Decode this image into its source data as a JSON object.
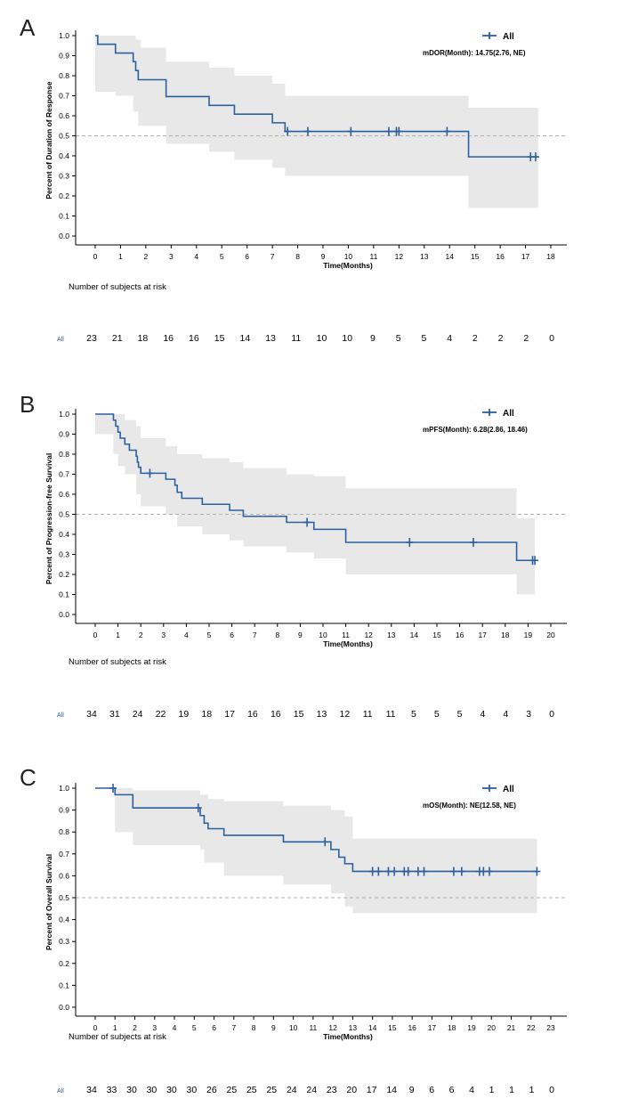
{
  "colors": {
    "line": "#2c5f9e",
    "band": "#e8e8e8",
    "axis": "#000000",
    "ref": "#b0b0b0",
    "risk_label": "#2c5f9e"
  },
  "panels": [
    {
      "letter": "A",
      "ylabel": "Percent of Duration of Response",
      "xlabel": "Time(Months)",
      "legend": "All",
      "median_text": "mDOR(Month): 14.75(2.76, NE)",
      "risk_title": "Number of subjects at risk",
      "risk_label": "All",
      "risk_counts": [
        "23",
        "21",
        "18",
        "16",
        "16",
        "15",
        "14",
        "13",
        "11",
        "10",
        "10",
        "9",
        "5",
        "5",
        "4",
        "2",
        "2",
        "2",
        "0"
      ],
      "chart_data": {
        "type": "line",
        "xlim": [
          0,
          18
        ],
        "ylim": [
          0,
          1
        ],
        "xticks": [
          "0",
          "1",
          "2",
          "3",
          "4",
          "5",
          "6",
          "7",
          "8",
          "9",
          "10",
          "11",
          "12",
          "13",
          "14",
          "15",
          "16",
          "17",
          "18"
        ],
        "yticks": [
          "0.0",
          "0.1",
          "0.2",
          "0.3",
          "0.4",
          "0.5",
          "0.6",
          "0.7",
          "0.8",
          "0.9",
          "1.0"
        ],
        "reference_y": 0.5,
        "grid": false,
        "legend_position": "top-right",
        "curve": [
          [
            0,
            1.0
          ],
          [
            0.1,
            0.957
          ],
          [
            0.8,
            0.913
          ],
          [
            1.5,
            0.87
          ],
          [
            1.6,
            0.826
          ],
          [
            1.7,
            0.78
          ],
          [
            2.8,
            0.696
          ],
          [
            4.5,
            0.652
          ],
          [
            5.5,
            0.608
          ],
          [
            7.0,
            0.565
          ],
          [
            7.5,
            0.522
          ],
          [
            14.75,
            0.395
          ],
          [
            17.5,
            0.395
          ]
        ],
        "ci_upper": [
          [
            0,
            1.0
          ],
          [
            1.6,
            0.98
          ],
          [
            1.8,
            0.94
          ],
          [
            2.8,
            0.87
          ],
          [
            4.5,
            0.84
          ],
          [
            5.5,
            0.8
          ],
          [
            7.0,
            0.76
          ],
          [
            7.5,
            0.7
          ],
          [
            14.75,
            0.64
          ],
          [
            17.5,
            0.64
          ]
        ],
        "ci_lower": [
          [
            0,
            0.72
          ],
          [
            0.8,
            0.7
          ],
          [
            1.5,
            0.62
          ],
          [
            1.7,
            0.55
          ],
          [
            2.8,
            0.46
          ],
          [
            4.5,
            0.42
          ],
          [
            5.5,
            0.38
          ],
          [
            7.0,
            0.34
          ],
          [
            7.5,
            0.3
          ],
          [
            14.75,
            0.14
          ],
          [
            17.5,
            0.14
          ]
        ],
        "censor_x": [
          7.6,
          8.4,
          10.1,
          11.6,
          11.9,
          12.0,
          13.9,
          17.2,
          17.4
        ]
      }
    },
    {
      "letter": "B",
      "ylabel": "Percent of Progression-free Survival",
      "xlabel": "Time(Months)",
      "legend": "All",
      "median_text": "mPFS(Month): 6.28(2.86, 18.46)",
      "risk_title": "Number of subjects at risk",
      "risk_label": "All",
      "risk_counts": [
        "34",
        "31",
        "24",
        "22",
        "19",
        "18",
        "17",
        "16",
        "16",
        "15",
        "13",
        "12",
        "11",
        "11",
        "5",
        "5",
        "5",
        "4",
        "4",
        "3",
        "0"
      ],
      "chart_data": {
        "type": "line",
        "xlim": [
          0,
          20
        ],
        "ylim": [
          0,
          1
        ],
        "xticks": [
          "0",
          "1",
          "2",
          "3",
          "4",
          "5",
          "6",
          "7",
          "8",
          "9",
          "10",
          "11",
          "12",
          "13",
          "14",
          "15",
          "16",
          "17",
          "18",
          "19",
          "20"
        ],
        "yticks": [
          "0.0",
          "0.1",
          "0.2",
          "0.3",
          "0.4",
          "0.5",
          "0.6",
          "0.7",
          "0.8",
          "0.9",
          "1.0"
        ],
        "reference_y": 0.5,
        "grid": false,
        "legend_position": "top-right",
        "curve": [
          [
            0,
            1.0
          ],
          [
            0.8,
            0.97
          ],
          [
            0.9,
            0.94
          ],
          [
            1.0,
            0.91
          ],
          [
            1.1,
            0.88
          ],
          [
            1.3,
            0.85
          ],
          [
            1.5,
            0.82
          ],
          [
            1.8,
            0.79
          ],
          [
            1.85,
            0.76
          ],
          [
            1.9,
            0.735
          ],
          [
            2.0,
            0.705
          ],
          [
            3.1,
            0.675
          ],
          [
            3.5,
            0.645
          ],
          [
            3.6,
            0.61
          ],
          [
            3.8,
            0.58
          ],
          [
            4.7,
            0.55
          ],
          [
            5.9,
            0.52
          ],
          [
            6.5,
            0.49
          ],
          [
            8.4,
            0.46
          ],
          [
            9.6,
            0.425
          ],
          [
            11.0,
            0.36
          ],
          [
            18.5,
            0.27
          ],
          [
            19.3,
            0.27
          ]
        ],
        "ci_upper": [
          [
            0,
            1.0
          ],
          [
            0.9,
            1.0
          ],
          [
            1.3,
            0.97
          ],
          [
            1.8,
            0.94
          ],
          [
            2.0,
            0.88
          ],
          [
            3.1,
            0.84
          ],
          [
            3.6,
            0.8
          ],
          [
            4.7,
            0.78
          ],
          [
            5.9,
            0.76
          ],
          [
            6.5,
            0.73
          ],
          [
            8.4,
            0.7
          ],
          [
            9.6,
            0.69
          ],
          [
            11.0,
            0.63
          ],
          [
            18.5,
            0.61
          ],
          [
            18.5,
            0.48
          ],
          [
            19.3,
            0.48
          ]
        ],
        "ci_lower": [
          [
            0,
            0.9
          ],
          [
            0.8,
            0.8
          ],
          [
            1.0,
            0.74
          ],
          [
            1.3,
            0.7
          ],
          [
            1.8,
            0.6
          ],
          [
            2.0,
            0.54
          ],
          [
            3.1,
            0.5
          ],
          [
            3.6,
            0.44
          ],
          [
            4.7,
            0.4
          ],
          [
            5.9,
            0.37
          ],
          [
            6.5,
            0.34
          ],
          [
            8.4,
            0.31
          ],
          [
            9.6,
            0.28
          ],
          [
            11.0,
            0.2
          ],
          [
            18.5,
            0.1
          ],
          [
            19.3,
            0.1
          ]
        ],
        "censor_x": [
          2.4,
          9.3,
          13.8,
          16.6,
          19.2,
          19.3
        ]
      }
    },
    {
      "letter": "C",
      "ylabel": "Percent of Overall Survival",
      "xlabel": "Time(Months)",
      "legend": "All",
      "median_text": "mOS(Month): NE(12.58, NE)",
      "risk_title": "Number of subjects at risk",
      "risk_label": "All",
      "risk_counts": [
        "34",
        "33",
        "30",
        "30",
        "30",
        "30",
        "26",
        "25",
        "25",
        "25",
        "24",
        "24",
        "23",
        "20",
        "17",
        "14",
        "9",
        "6",
        "6",
        "4",
        "1",
        "1",
        "1",
        "0"
      ],
      "chart_data": {
        "type": "line",
        "xlim": [
          0,
          23
        ],
        "ylim": [
          0,
          1
        ],
        "xticks": [
          "0",
          "1",
          "2",
          "3",
          "4",
          "5",
          "6",
          "7",
          "8",
          "9",
          "10",
          "11",
          "12",
          "13",
          "14",
          "15",
          "16",
          "17",
          "18",
          "19",
          "20",
          "21",
          "22",
          "23"
        ],
        "yticks": [
          "0.0",
          "0.1",
          "0.2",
          "0.3",
          "0.4",
          "0.5",
          "0.6",
          "0.7",
          "0.8",
          "0.9",
          "1.0"
        ],
        "reference_y": 0.5,
        "grid": false,
        "legend_position": "top-right",
        "curve": [
          [
            0,
            1.0
          ],
          [
            1.0,
            0.97
          ],
          [
            1.9,
            0.91
          ],
          [
            5.3,
            0.875
          ],
          [
            5.5,
            0.84
          ],
          [
            5.7,
            0.815
          ],
          [
            6.5,
            0.785
          ],
          [
            9.5,
            0.755
          ],
          [
            11.9,
            0.72
          ],
          [
            12.3,
            0.685
          ],
          [
            12.6,
            0.655
          ],
          [
            13.0,
            0.62
          ],
          [
            22.3,
            0.62
          ]
        ],
        "ci_upper": [
          [
            0,
            1.0
          ],
          [
            1.0,
            1.0
          ],
          [
            1.9,
            0.99
          ],
          [
            5.3,
            0.97
          ],
          [
            5.7,
            0.95
          ],
          [
            6.5,
            0.94
          ],
          [
            9.5,
            0.92
          ],
          [
            11.9,
            0.9
          ],
          [
            12.6,
            0.87
          ],
          [
            13.0,
            0.77
          ],
          [
            22.3,
            0.77
          ]
        ],
        "ci_lower": [
          [
            0,
            1.0
          ],
          [
            1.0,
            0.8
          ],
          [
            1.9,
            0.74
          ],
          [
            5.3,
            0.72
          ],
          [
            5.5,
            0.66
          ],
          [
            6.5,
            0.6
          ],
          [
            9.5,
            0.56
          ],
          [
            11.9,
            0.52
          ],
          [
            12.6,
            0.46
          ],
          [
            13.0,
            0.43
          ],
          [
            22.3,
            0.43
          ]
        ],
        "censor_x": [
          0.9,
          5.2,
          11.6,
          14.0,
          14.3,
          14.8,
          15.1,
          15.6,
          15.8,
          16.3,
          16.6,
          18.1,
          18.5,
          19.4,
          19.6,
          19.9,
          22.3
        ]
      }
    }
  ]
}
